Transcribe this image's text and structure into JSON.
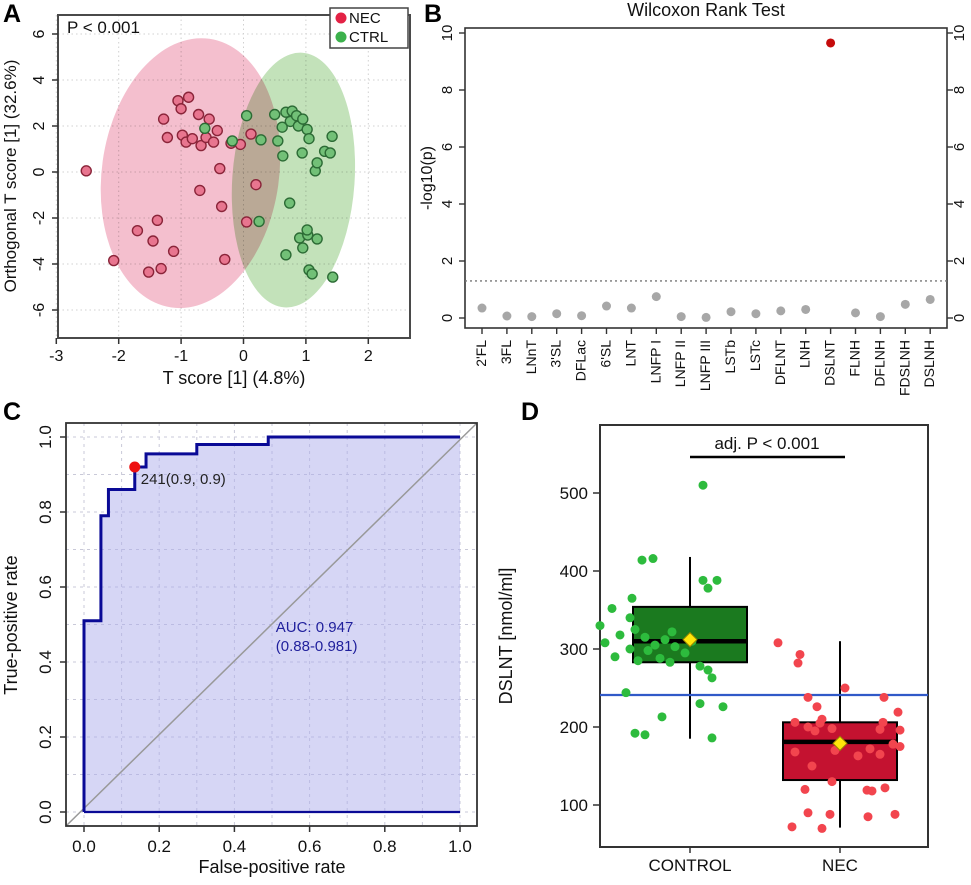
{
  "panels": {
    "a": {
      "letter": "A"
    },
    "b": {
      "letter": "B"
    },
    "c": {
      "letter": "C"
    },
    "d": {
      "letter": "D"
    }
  },
  "chart_data": [
    {
      "id": "oplsda-score-plot",
      "type": "scatter",
      "annotation": "P < 0.001",
      "xlabel": "T score [1] (4.8%)",
      "ylabel": "Orthogonal T score [1] (32.6%)",
      "xlim": [
        -3,
        2.6
      ],
      "ylim": [
        -7.2,
        6.8
      ],
      "xticks": [
        -3,
        -2,
        -1,
        0,
        1,
        2
      ],
      "yticks": [
        -6,
        -4,
        -2,
        0,
        2,
        4,
        6
      ],
      "grid": "dotted",
      "legend": [
        {
          "label": "NEC",
          "color": "#e32245"
        },
        {
          "label": "CTRL",
          "color": "#3cb14c"
        }
      ],
      "ellipses": [
        {
          "group": "NEC",
          "cx": -0.85,
          "cy": -0.05,
          "rx": 1.42,
          "ry": 5.9,
          "rot": 8,
          "fill": "#f4bfce"
        },
        {
          "group": "CTRL",
          "cx": 0.8,
          "cy": -0.35,
          "rx": 0.98,
          "ry": 5.55,
          "rot": 4,
          "fill": "#c3e2ba"
        }
      ],
      "series": [
        {
          "name": "NEC",
          "fill": "#e8758f",
          "stroke": "#8a2439",
          "points": [
            [
              -2.52,
              0.05
            ],
            [
              -2.08,
              -3.85
            ],
            [
              -1.7,
              -2.55
            ],
            [
              -1.52,
              -4.35
            ],
            [
              -1.45,
              -3.0
            ],
            [
              -1.38,
              -2.1
            ],
            [
              -1.32,
              -4.2
            ],
            [
              -1.28,
              2.3
            ],
            [
              -1.22,
              1.5
            ],
            [
              -1.12,
              -3.45
            ],
            [
              -1.05,
              3.1
            ],
            [
              -1.0,
              2.75
            ],
            [
              -0.98,
              1.6
            ],
            [
              -0.92,
              1.3
            ],
            [
              -0.88,
              3.25
            ],
            [
              -0.82,
              1.45
            ],
            [
              -0.72,
              2.5
            ],
            [
              -0.7,
              -0.8
            ],
            [
              -0.68,
              1.15
            ],
            [
              -0.6,
              1.5
            ],
            [
              -0.55,
              2.3
            ],
            [
              -0.48,
              1.3
            ],
            [
              -0.42,
              1.8
            ],
            [
              -0.38,
              0.15
            ],
            [
              -0.35,
              -1.5
            ],
            [
              -0.3,
              -3.8
            ],
            [
              -0.2,
              1.25
            ],
            [
              -0.05,
              1.2
            ],
            [
              0.05,
              -2.17
            ],
            [
              0.12,
              1.65
            ],
            [
              0.2,
              -0.55
            ]
          ]
        },
        {
          "name": "CTRL",
          "fill": "#72c077",
          "stroke": "#2c6b35",
          "points": [
            [
              -0.62,
              1.9
            ],
            [
              -0.18,
              1.35
            ],
            [
              0.05,
              2.45
            ],
            [
              0.25,
              -2.15
            ],
            [
              0.28,
              1.4
            ],
            [
              0.5,
              2.5
            ],
            [
              0.55,
              1.35
            ],
            [
              0.62,
              1.95
            ],
            [
              0.63,
              0.7
            ],
            [
              0.68,
              2.6
            ],
            [
              0.74,
              -1.35
            ],
            [
              0.75,
              2.2
            ],
            [
              0.78,
              2.65
            ],
            [
              0.85,
              2.45
            ],
            [
              0.88,
              2.0
            ],
            [
              0.95,
              2.3
            ],
            [
              1.02,
              1.85
            ],
            [
              1.05,
              1.45
            ],
            [
              0.94,
              0.83
            ],
            [
              1.15,
              0.05
            ],
            [
              1.18,
              0.4
            ],
            [
              1.3,
              0.9
            ],
            [
              1.39,
              0.83
            ],
            [
              1.42,
              1.55
            ],
            [
              0.68,
              -3.6
            ],
            [
              0.9,
              -2.87
            ],
            [
              1.03,
              -2.74
            ],
            [
              1.02,
              -2.52
            ],
            [
              1.18,
              -2.91
            ],
            [
              0.95,
              -3.3
            ],
            [
              1.05,
              -4.26
            ],
            [
              1.1,
              -4.43
            ],
            [
              1.43,
              -4.57
            ]
          ]
        }
      ]
    },
    {
      "id": "wilcoxon-dotplot",
      "type": "scatter",
      "title": "Wilcoxon Rank Test",
      "ylabel": "-log10(p)",
      "ylim": [
        -0.35,
        10.35
      ],
      "yticks": [
        0,
        2,
        4,
        6,
        8,
        10
      ],
      "threshold": 1.3,
      "categories": [
        "2'FL",
        "3FL",
        "LNnT",
        "3'SL",
        "DFLac",
        "6'SL",
        "LNT",
        "LNFP I",
        "LNFP II",
        "LNFP III",
        "LSTb",
        "LSTc",
        "DFLNT",
        "LNH",
        "DSLNT",
        "FLNH",
        "DFLNH",
        "FDSLNH",
        "DSLNH"
      ],
      "values": [
        0.35,
        0.07,
        0.05,
        0.15,
        0.08,
        0.42,
        0.35,
        0.75,
        0.05,
        0.02,
        0.22,
        0.15,
        0.25,
        0.3,
        9.65,
        0.18,
        0.05,
        0.48,
        0.65
      ],
      "highlight_index": 14,
      "dot_color": "#a7a7a7",
      "highlight_color": "#c50b0b"
    },
    {
      "id": "roc-curve",
      "type": "line",
      "xlabel": "False-positive rate",
      "ylabel": "True-positive rate",
      "xticks": [
        0.0,
        0.2,
        0.4,
        0.6,
        0.8,
        1.0
      ],
      "yticks": [
        0.0,
        0.2,
        0.4,
        0.6,
        0.8,
        1.0
      ],
      "grid_step": 0.1,
      "curve": [
        [
          0,
          0
        ],
        [
          0,
          0.51
        ],
        [
          0.045,
          0.51
        ],
        [
          0.045,
          0.79
        ],
        [
          0.065,
          0.79
        ],
        [
          0.065,
          0.86
        ],
        [
          0.135,
          0.86
        ],
        [
          0.135,
          0.92
        ],
        [
          0.165,
          0.92
        ],
        [
          0.165,
          0.955
        ],
        [
          0.3,
          0.955
        ],
        [
          0.3,
          0.98
        ],
        [
          0.49,
          0.98
        ],
        [
          0.49,
          1.0
        ],
        [
          1.0,
          1.0
        ]
      ],
      "marker": {
        "x": 0.135,
        "y": 0.92,
        "label": "241(0.9, 0.9)",
        "color": "#ee1111"
      },
      "auc_label": "AUC: 0.947",
      "auc_ci": "(0.88-0.981)",
      "line_color": "#0a0a96",
      "fill_color": "rgba(173,173,236,0.5)",
      "diagonal_color": "#999999",
      "text_color": "#1f1f9c"
    },
    {
      "id": "dslnt-boxplot",
      "type": "box",
      "ylabel": "DSLNT [nmol/ml]",
      "yticks": [
        100,
        200,
        300,
        400,
        500
      ],
      "ylim": [
        46,
        587
      ],
      "annotation": "adj. P < 0.001",
      "cutoff": 241,
      "cutoff_color": "#3059c8",
      "mean_marker_color": "#ffe60a",
      "groups": [
        {
          "label": "CONTROL",
          "box_fill": "#1b7a1f",
          "dot_color": "#2dbb3d",
          "stats": {
            "lo": 185,
            "q1": 283,
            "median": 310,
            "q3": 354,
            "hi": 418
          },
          "mean": 312,
          "points": [
            [
              13,
              510
            ],
            [
              -48,
              414
            ],
            [
              -37,
              416
            ],
            [
              13,
              388
            ],
            [
              27,
              388
            ],
            [
              18,
              378
            ],
            [
              -58,
              365
            ],
            [
              -78,
              352
            ],
            [
              -60,
              340
            ],
            [
              -90,
              330
            ],
            [
              -55,
              325
            ],
            [
              -18,
              322
            ],
            [
              -70,
              318
            ],
            [
              -45,
              315
            ],
            [
              -25,
              312
            ],
            [
              2,
              310
            ],
            [
              -85,
              308
            ],
            [
              -35,
              305
            ],
            [
              -15,
              303
            ],
            [
              -60,
              300
            ],
            [
              -42,
              298
            ],
            [
              -5,
              295
            ],
            [
              -75,
              290
            ],
            [
              -30,
              288
            ],
            [
              -52,
              285
            ],
            [
              -20,
              283
            ],
            [
              10,
              278
            ],
            [
              18,
              273
            ],
            [
              22,
              263
            ],
            [
              -64,
              244
            ],
            [
              10,
              230
            ],
            [
              33,
              226
            ],
            [
              -28,
              213
            ],
            [
              -55,
              192
            ],
            [
              -45,
              190
            ],
            [
              22,
              186
            ]
          ]
        },
        {
          "label": "NEC",
          "box_fill": "#c41230",
          "dot_color": "#f2454e",
          "stats": {
            "lo": 71,
            "q1": 132,
            "median": 181,
            "q3": 206,
            "hi": 310
          },
          "mean": 179,
          "points": [
            [
              -62,
              308
            ],
            [
              -40,
              293
            ],
            [
              -42,
              282
            ],
            [
              5,
              250
            ],
            [
              -32,
              238
            ],
            [
              44,
              238
            ],
            [
              -23,
              226
            ],
            [
              58,
              219
            ],
            [
              -18,
              210
            ],
            [
              -45,
              206
            ],
            [
              43,
              206
            ],
            [
              -20,
              205
            ],
            [
              -32,
              200
            ],
            [
              -8,
              198
            ],
            [
              40,
              197
            ],
            [
              60,
              196
            ],
            [
              -25,
              195
            ],
            [
              53,
              178
            ],
            [
              60,
              175
            ],
            [
              30,
              172
            ],
            [
              -5,
              170
            ],
            [
              -45,
              168
            ],
            [
              40,
              165
            ],
            [
              18,
              163
            ],
            [
              -28,
              150
            ],
            [
              -8,
              130
            ],
            [
              -35,
              120
            ],
            [
              27,
              119
            ],
            [
              32,
              118
            ],
            [
              45,
              122
            ],
            [
              -32,
              90
            ],
            [
              -10,
              88
            ],
            [
              28,
              85
            ],
            [
              55,
              88
            ],
            [
              -48,
              72
            ],
            [
              -18,
              70
            ]
          ]
        }
      ]
    }
  ]
}
